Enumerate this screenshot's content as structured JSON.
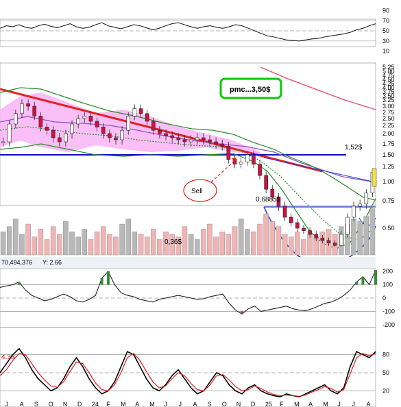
{
  "chart_data": [
    {
      "type": "line",
      "panel": "rsi-top",
      "y_ticks": [
        "90",
        "70",
        "50",
        "30",
        "10"
      ],
      "ylim": [
        0,
        100
      ],
      "reference_levels": [
        70,
        50,
        30
      ],
      "series": [
        {
          "values": [
            55,
            60,
            58,
            62,
            57,
            55,
            60,
            63,
            59,
            56,
            60,
            64,
            58,
            55,
            57,
            62,
            66,
            60,
            57,
            54,
            58,
            62,
            60,
            56,
            52,
            55,
            60,
            64,
            66,
            62,
            58,
            55,
            58,
            60,
            57,
            55,
            58,
            62,
            60,
            55,
            50,
            45,
            40,
            38,
            35,
            32,
            31,
            30,
            32,
            34,
            35,
            38,
            40,
            42,
            44,
            47,
            52,
            55,
            60,
            64
          ]
        }
      ]
    },
    {
      "type": "candlestick",
      "panel": "price",
      "price_axis": [
        "5.25",
        "5.00",
        "4.75",
        "4.50",
        "4.25",
        "4.00",
        "3.75",
        "3.50",
        "3.25",
        "3.00",
        "2.75",
        "2.50",
        "2.25",
        "2.00",
        "1.75",
        "1.50",
        "1.25",
        "1.00",
        "0.75",
        "0.50"
      ],
      "x_ticks": [
        "J",
        "A",
        "S",
        "O",
        "N",
        "D",
        "24",
        "F",
        "M",
        "A",
        "M",
        "J",
        "J",
        "A",
        "S",
        "O",
        "N",
        "D",
        "25",
        "F",
        "M",
        "A",
        "M",
        "J",
        "J",
        "A"
      ],
      "annotations": {
        "pmc_box": "pmc...3,50$",
        "level_152": "1,52$",
        "level_06885": "0,6885$",
        "level_036": "0,36$",
        "sell": "Sell"
      },
      "status_left": "70,494,376",
      "status_right": "Y: 2.66",
      "price_close": [
        1.8,
        2.3,
        2.7,
        3.1,
        3.0,
        2.6,
        2.2,
        2.1,
        1.9,
        1.8,
        2.0,
        2.3,
        2.5,
        2.6,
        2.4,
        2.2,
        2.0,
        1.9,
        1.85,
        2.1,
        2.6,
        2.9,
        2.7,
        2.4,
        2.1,
        2.0,
        1.95,
        1.9,
        1.85,
        1.8,
        1.85,
        1.9,
        1.85,
        1.8,
        1.75,
        1.7,
        1.4,
        1.3,
        1.35,
        1.5,
        1.3,
        1.1,
        0.9,
        0.8,
        0.7,
        0.6,
        0.55,
        0.5,
        0.48,
        0.45,
        0.42,
        0.4,
        0.38,
        0.36,
        0.45,
        0.6,
        0.7,
        0.72,
        0.85,
        1.15
      ],
      "volume_pct": [
        45,
        55,
        70,
        40,
        60,
        35,
        50,
        30,
        55,
        40,
        65,
        45,
        35,
        50,
        30,
        45,
        55,
        40,
        35,
        60,
        70,
        45,
        40,
        35,
        50,
        30,
        45,
        40,
        35,
        55,
        40,
        30,
        50,
        60,
        35,
        45,
        40,
        55,
        70,
        50,
        45,
        60,
        80,
        65,
        55,
        40,
        35,
        45,
        30,
        40,
        35,
        45,
        50,
        40,
        55,
        60,
        70,
        65,
        75,
        90
      ]
    },
    {
      "type": "area",
      "panel": "oscillator-mid",
      "y_ticks": [
        "200",
        "100",
        "0",
        "-100",
        "-200"
      ],
      "ylim": [
        -200,
        200
      ],
      "values": [
        80,
        90,
        100,
        120,
        60,
        20,
        0,
        -20,
        -10,
        10,
        30,
        10,
        -20,
        -30,
        -10,
        20,
        150,
        200,
        100,
        40,
        20,
        10,
        -10,
        -20,
        -30,
        -10,
        0,
        10,
        20,
        10,
        0,
        -10,
        -5,
        10,
        20,
        30,
        -40,
        -90,
        -120,
        -80,
        -60,
        -100,
        -90,
        -80,
        -70,
        -60,
        -80,
        -90,
        -95,
        -80,
        -60,
        -40,
        -30,
        -10,
        20,
        60,
        120,
        160,
        100,
        210
      ]
    },
    {
      "type": "line",
      "panel": "stochastic-bottom",
      "label": "4.33",
      "y_ticks": [
        "80",
        "50",
        "20"
      ],
      "ylim": [
        0,
        100
      ],
      "reference_levels": [
        80,
        50,
        20
      ],
      "series": [
        {
          "color": "#000000",
          "values": [
            50,
            65,
            80,
            90,
            75,
            55,
            40,
            30,
            20,
            25,
            40,
            60,
            75,
            60,
            40,
            25,
            15,
            20,
            35,
            60,
            85,
            80,
            60,
            40,
            25,
            20,
            30,
            45,
            55,
            40,
            25,
            15,
            20,
            35,
            50,
            45,
            30,
            20,
            15,
            25,
            30,
            20,
            15,
            12,
            10,
            15,
            12,
            10,
            15,
            20,
            25,
            30,
            20,
            15,
            25,
            60,
            85,
            80,
            75,
            85
          ]
        },
        {
          "color": "#e02020",
          "values": [
            45,
            55,
            70,
            82,
            80,
            65,
            50,
            38,
            28,
            26,
            35,
            52,
            68,
            65,
            50,
            33,
            22,
            20,
            30,
            50,
            75,
            82,
            70,
            52,
            35,
            25,
            28,
            40,
            50,
            45,
            32,
            22,
            20,
            30,
            45,
            47,
            38,
            27,
            20,
            22,
            28,
            24,
            18,
            14,
            12,
            13,
            12,
            11,
            13,
            18,
            22,
            27,
            24,
            18,
            22,
            48,
            75,
            82,
            78,
            82
          ]
        }
      ]
    }
  ],
  "colors": {
    "pink_fill": "#f8b4f4",
    "candle_up": "#ffffff",
    "candle_down": "#d01040",
    "volume_up": "#b8b8b8",
    "volume_down": "#f0b4b4",
    "trendline_red": "#e82020",
    "support_blue": "#1010c0",
    "bollinger_green": "#2a8a2a",
    "ma_purple": "#9050c8",
    "box_green": "#00cc00"
  }
}
